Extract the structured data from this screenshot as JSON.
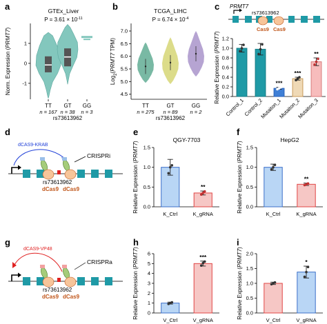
{
  "panel_letters": [
    "a",
    "b",
    "c",
    "d",
    "e",
    "f",
    "g",
    "h",
    "i"
  ],
  "colors": {
    "teal": "#83c7bd",
    "teal_dark": "#1f9aa6",
    "violin_b_green": "#79b9a4",
    "violin_b_yellow": "#dcdc8a",
    "violin_b_purple": "#b6a4d2",
    "bar_blue": "#b9d6f5",
    "bar_blue_edge": "#3b6fc9",
    "bar_red": "#f6c7c5",
    "bar_red_edge": "#e04444",
    "bar_pink": "#f7bcbc",
    "bar_tan": "#efd9b6",
    "cas9": "#f7c59a",
    "sgRNA": "#a5cc7a",
    "krab": "#2040d8",
    "vp48": "#e02020",
    "label_orange": "#c0561a"
  },
  "gene_label": "PRMT7",
  "snp": "rs73613962",
  "diagram_c": {
    "cas9_1": "Cas9",
    "cas9_2": "Cas9"
  },
  "diagram_d": {
    "effector": "dCAS9-KRAB",
    "mode": "CRISPRi",
    "snp": "rs73613962",
    "dcas9_1": "dCas9",
    "dcas9_2": "dCas9"
  },
  "diagram_g": {
    "effector": "dCAS9-VP48",
    "mode": "CRISPRa",
    "snp": "rs73613962",
    "dcas9_1": "dCas9",
    "dcas9_2": "dCas9"
  },
  "chart_data": [
    {
      "panel": "a",
      "type": "violin",
      "title": "GTEx_Liver",
      "pval_prefix": "P = 3.61 × 10",
      "pval_exp": "-11",
      "ylabel_pre": "Norm. Expression (",
      "ylabel_gene": "PRMT7",
      "ylabel_post": ")",
      "yticks": [
        -1,
        0,
        1
      ],
      "ylim": [
        -1.8,
        2.0
      ],
      "categories": [
        "TT",
        "GT",
        "GG"
      ],
      "n_labels": [
        "n = 167",
        "n = 38",
        "n = 3"
      ],
      "xlabel": "rs73613962",
      "medians": [
        -0.08,
        0.32,
        1.3
      ]
    },
    {
      "panel": "b",
      "type": "violin",
      "title": "TCGA_LIHC",
      "pval_prefix": "P = 6.74 × 10",
      "pval_exp": "-4",
      "ylabel_pre": "Log",
      "ylabel_sub": "2",
      "ylabel_gene": "PRMT7",
      "ylabel_post": " TPM)",
      "yticks": [
        4.5,
        5.0,
        5.5,
        6.0,
        6.5,
        7.0
      ],
      "ylim": [
        4.3,
        7.3
      ],
      "categories": [
        "TT",
        "GT",
        "GG"
      ],
      "n_labels": [
        "n = 275",
        "n = 89",
        "n = 2"
      ],
      "xlabel": "rs73613962",
      "medians": [
        5.6,
        5.75,
        6.1
      ]
    },
    {
      "panel": "c",
      "type": "bar",
      "ylabel_pre": "Relative Expression (",
      "ylabel_gene": "PRMT7",
      "ylabel_post": ")",
      "yticks": [
        0.0,
        0.2,
        0.4,
        0.6,
        0.8,
        1.0,
        1.2
      ],
      "ylim": [
        0,
        1.2
      ],
      "categories": [
        "Control_1",
        "Control_2",
        "Mutaiton_1",
        "Mutaiton_2",
        "Mutaiton_3"
      ],
      "values": [
        1.0,
        0.98,
        0.17,
        0.37,
        0.72
      ],
      "errors": [
        0.08,
        0.12,
        0.02,
        0.03,
        0.08
      ],
      "points": [
        [
          0.94,
          1.0,
          1.07
        ],
        [
          0.88,
          0.98,
          1.08
        ],
        [
          0.15,
          0.17,
          0.19
        ],
        [
          0.34,
          0.37,
          0.4
        ],
        [
          0.66,
          0.72,
          0.78
        ]
      ],
      "stars": [
        "",
        "",
        "***",
        "***",
        "**"
      ]
    },
    {
      "panel": "e",
      "type": "bar",
      "title": "QGY-7703",
      "ylabel_pre": "Relative Expression (",
      "ylabel_gene": "PRMT7",
      "ylabel_post": ")",
      "yticks": [
        0.0,
        0.5,
        1.0,
        1.5
      ],
      "ylim": [
        0,
        1.5
      ],
      "categories": [
        "K_Ctrl",
        "K_gRNA"
      ],
      "values": [
        1.0,
        0.35
      ],
      "errors": [
        0.2,
        0.05
      ],
      "points": [
        [
          0.85,
          1.0,
          1.05
        ],
        [
          0.31,
          0.35,
          0.39
        ]
      ],
      "stars": [
        "",
        "**"
      ]
    },
    {
      "panel": "f",
      "type": "bar",
      "title": "HepG2",
      "ylabel_pre": "Relative Expression (",
      "ylabel_gene": "PRMT7",
      "ylabel_post": ")",
      "yticks": [
        0.0,
        0.5,
        1.0,
        1.5
      ],
      "ylim": [
        0,
        1.5
      ],
      "categories": [
        "K_Ctrl",
        "K_gRNA"
      ],
      "values": [
        1.0,
        0.57
      ],
      "errors": [
        0.08,
        0.03
      ],
      "points": [
        [
          0.95,
          1.0,
          1.06
        ],
        [
          0.55,
          0.57,
          0.59
        ]
      ],
      "stars": [
        "",
        "**"
      ]
    },
    {
      "panel": "h",
      "type": "bar",
      "ylabel_pre": "Relative Expression (",
      "ylabel_gene": "PRMT7",
      "ylabel_post": ")",
      "yticks": [
        0,
        1,
        2,
        3,
        4,
        5,
        6
      ],
      "ylim": [
        0,
        6
      ],
      "categories": [
        "V_Ctrl",
        "V_gRNA"
      ],
      "values": [
        1.0,
        5.0
      ],
      "errors": [
        0.1,
        0.25
      ],
      "points": [
        [
          0.92,
          1.0,
          1.08
        ],
        [
          4.8,
          5.05,
          5.2
        ]
      ],
      "stars": [
        "",
        "***"
      ]
    },
    {
      "panel": "i",
      "type": "bar",
      "ylabel_pre": "Relative Expression (",
      "ylabel_gene": "PRMT7",
      "ylabel_post": ")",
      "yticks": [
        0.0,
        0.5,
        1.0,
        1.5,
        2.0
      ],
      "ylim": [
        0,
        2.0
      ],
      "categories": [
        "V_Ctrl",
        "V_gRNA"
      ],
      "values": [
        1.0,
        1.38
      ],
      "errors": [
        0.04,
        0.2
      ],
      "points": [
        [
          0.97,
          1.0,
          1.03
        ],
        [
          1.22,
          1.38,
          1.55
        ]
      ],
      "stars": [
        "",
        "*"
      ]
    }
  ]
}
